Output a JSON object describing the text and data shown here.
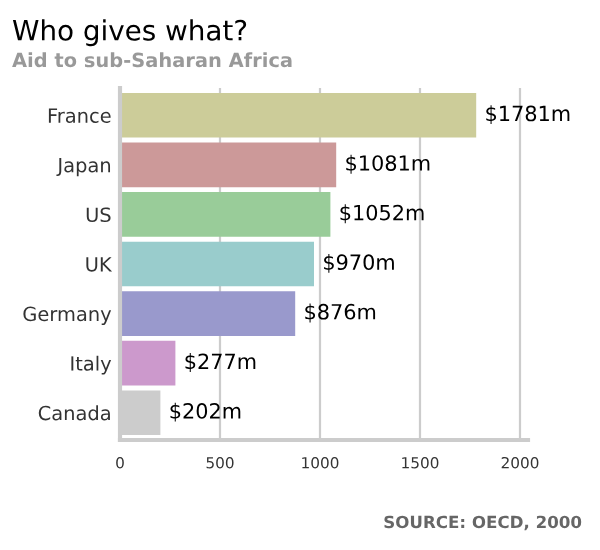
{
  "chart_data": {
    "type": "bar",
    "orientation": "horizontal",
    "title": "Who gives what?",
    "subtitle": "Aid to sub-Saharan Africa",
    "categories": [
      "France",
      "Japan",
      "US",
      "UK",
      "Germany",
      "Italy",
      "Canada"
    ],
    "values": [
      1781,
      1081,
      1052,
      970,
      876,
      277,
      202
    ],
    "colors": [
      "#cccc99",
      "#cc9999",
      "#99cc99",
      "#99cccc",
      "#9999cc",
      "#cc99cc",
      "#cccccc"
    ],
    "value_labels": [
      "$1781m",
      "$1081m",
      "$1052m",
      "$970m",
      "$876m",
      "$277m",
      "$202m"
    ],
    "xlim": [
      0,
      2040
    ],
    "xticks": [
      0,
      500,
      1000,
      1500,
      2000
    ],
    "grid": "x",
    "annotations": [
      "SOURCE: OECD, 2000"
    ]
  }
}
